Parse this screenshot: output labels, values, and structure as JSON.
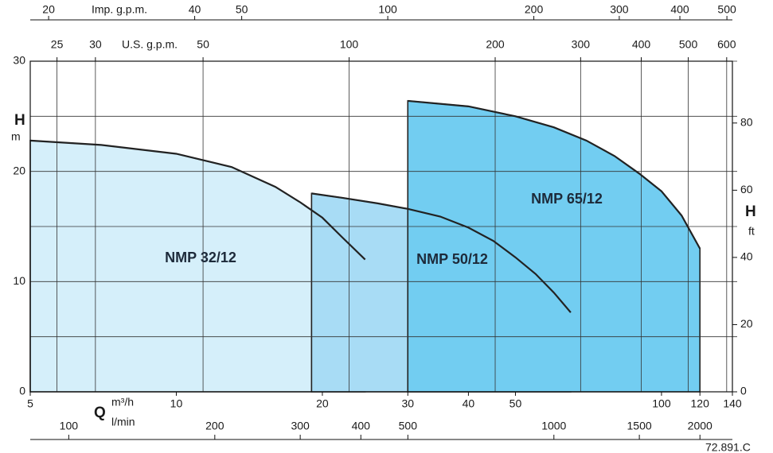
{
  "chart_data": {
    "type": "area",
    "xscale": "log",
    "xlim": [
      5,
      140
    ],
    "xticks": [
      5,
      10,
      20,
      30,
      40,
      50,
      100,
      120,
      140
    ],
    "x_symbol": "Q",
    "x_unit": "m³/h",
    "ylim": [
      0,
      30
    ],
    "yticks": [
      0,
      10,
      20,
      30
    ],
    "y_symbol": "H",
    "y_unit": "m",
    "y2lim": [
      0,
      98.4
    ],
    "y2ticks": [
      0,
      20,
      40,
      60,
      80
    ],
    "y2_symbol": "H",
    "y2_unit": "ft",
    "grid": true,
    "top_axes": [
      {
        "label": "Imp. g.p.m.",
        "xlim": [
          18.33,
          513.2
        ],
        "xticks": [
          20,
          40,
          50,
          100,
          200,
          300,
          400,
          500
        ]
      },
      {
        "label": "U.S. g.p.m.",
        "xlim": [
          22.02,
          616.5
        ],
        "xticks": [
          25,
          30,
          50,
          100,
          200,
          300,
          400,
          500,
          600
        ]
      }
    ],
    "bottom_axis2": {
      "label": "l/min",
      "xlim": [
        83.3,
        2333
      ],
      "xticks": [
        100,
        200,
        300,
        400,
        500,
        1000,
        1500,
        2000
      ]
    },
    "series": [
      {
        "name": "NMP 32/12",
        "color": "#d5effa",
        "x": [
          5,
          7,
          10,
          13,
          16,
          18,
          20,
          22,
          24.5
        ],
        "values": [
          22.8,
          22.4,
          21.6,
          20.4,
          18.6,
          17.2,
          15.8,
          14.0,
          12.0
        ]
      },
      {
        "name": "NMP 50/12",
        "color": "#a8dcf5",
        "x": [
          19,
          22,
          26,
          30,
          35,
          40,
          45,
          50,
          55,
          60,
          65
        ],
        "values": [
          18.0,
          17.6,
          17.1,
          16.6,
          15.9,
          14.9,
          13.7,
          12.2,
          10.7,
          9.0,
          7.2
        ]
      },
      {
        "name": "NMP 65/12",
        "color": "#72cdf1",
        "x": [
          30,
          40,
          50,
          60,
          70,
          80,
          90,
          100,
          110,
          120
        ],
        "values": [
          26.4,
          25.9,
          25.0,
          24.0,
          22.8,
          21.4,
          19.8,
          18.2,
          16.0,
          13.0
        ]
      }
    ],
    "code": "72.891.C"
  }
}
